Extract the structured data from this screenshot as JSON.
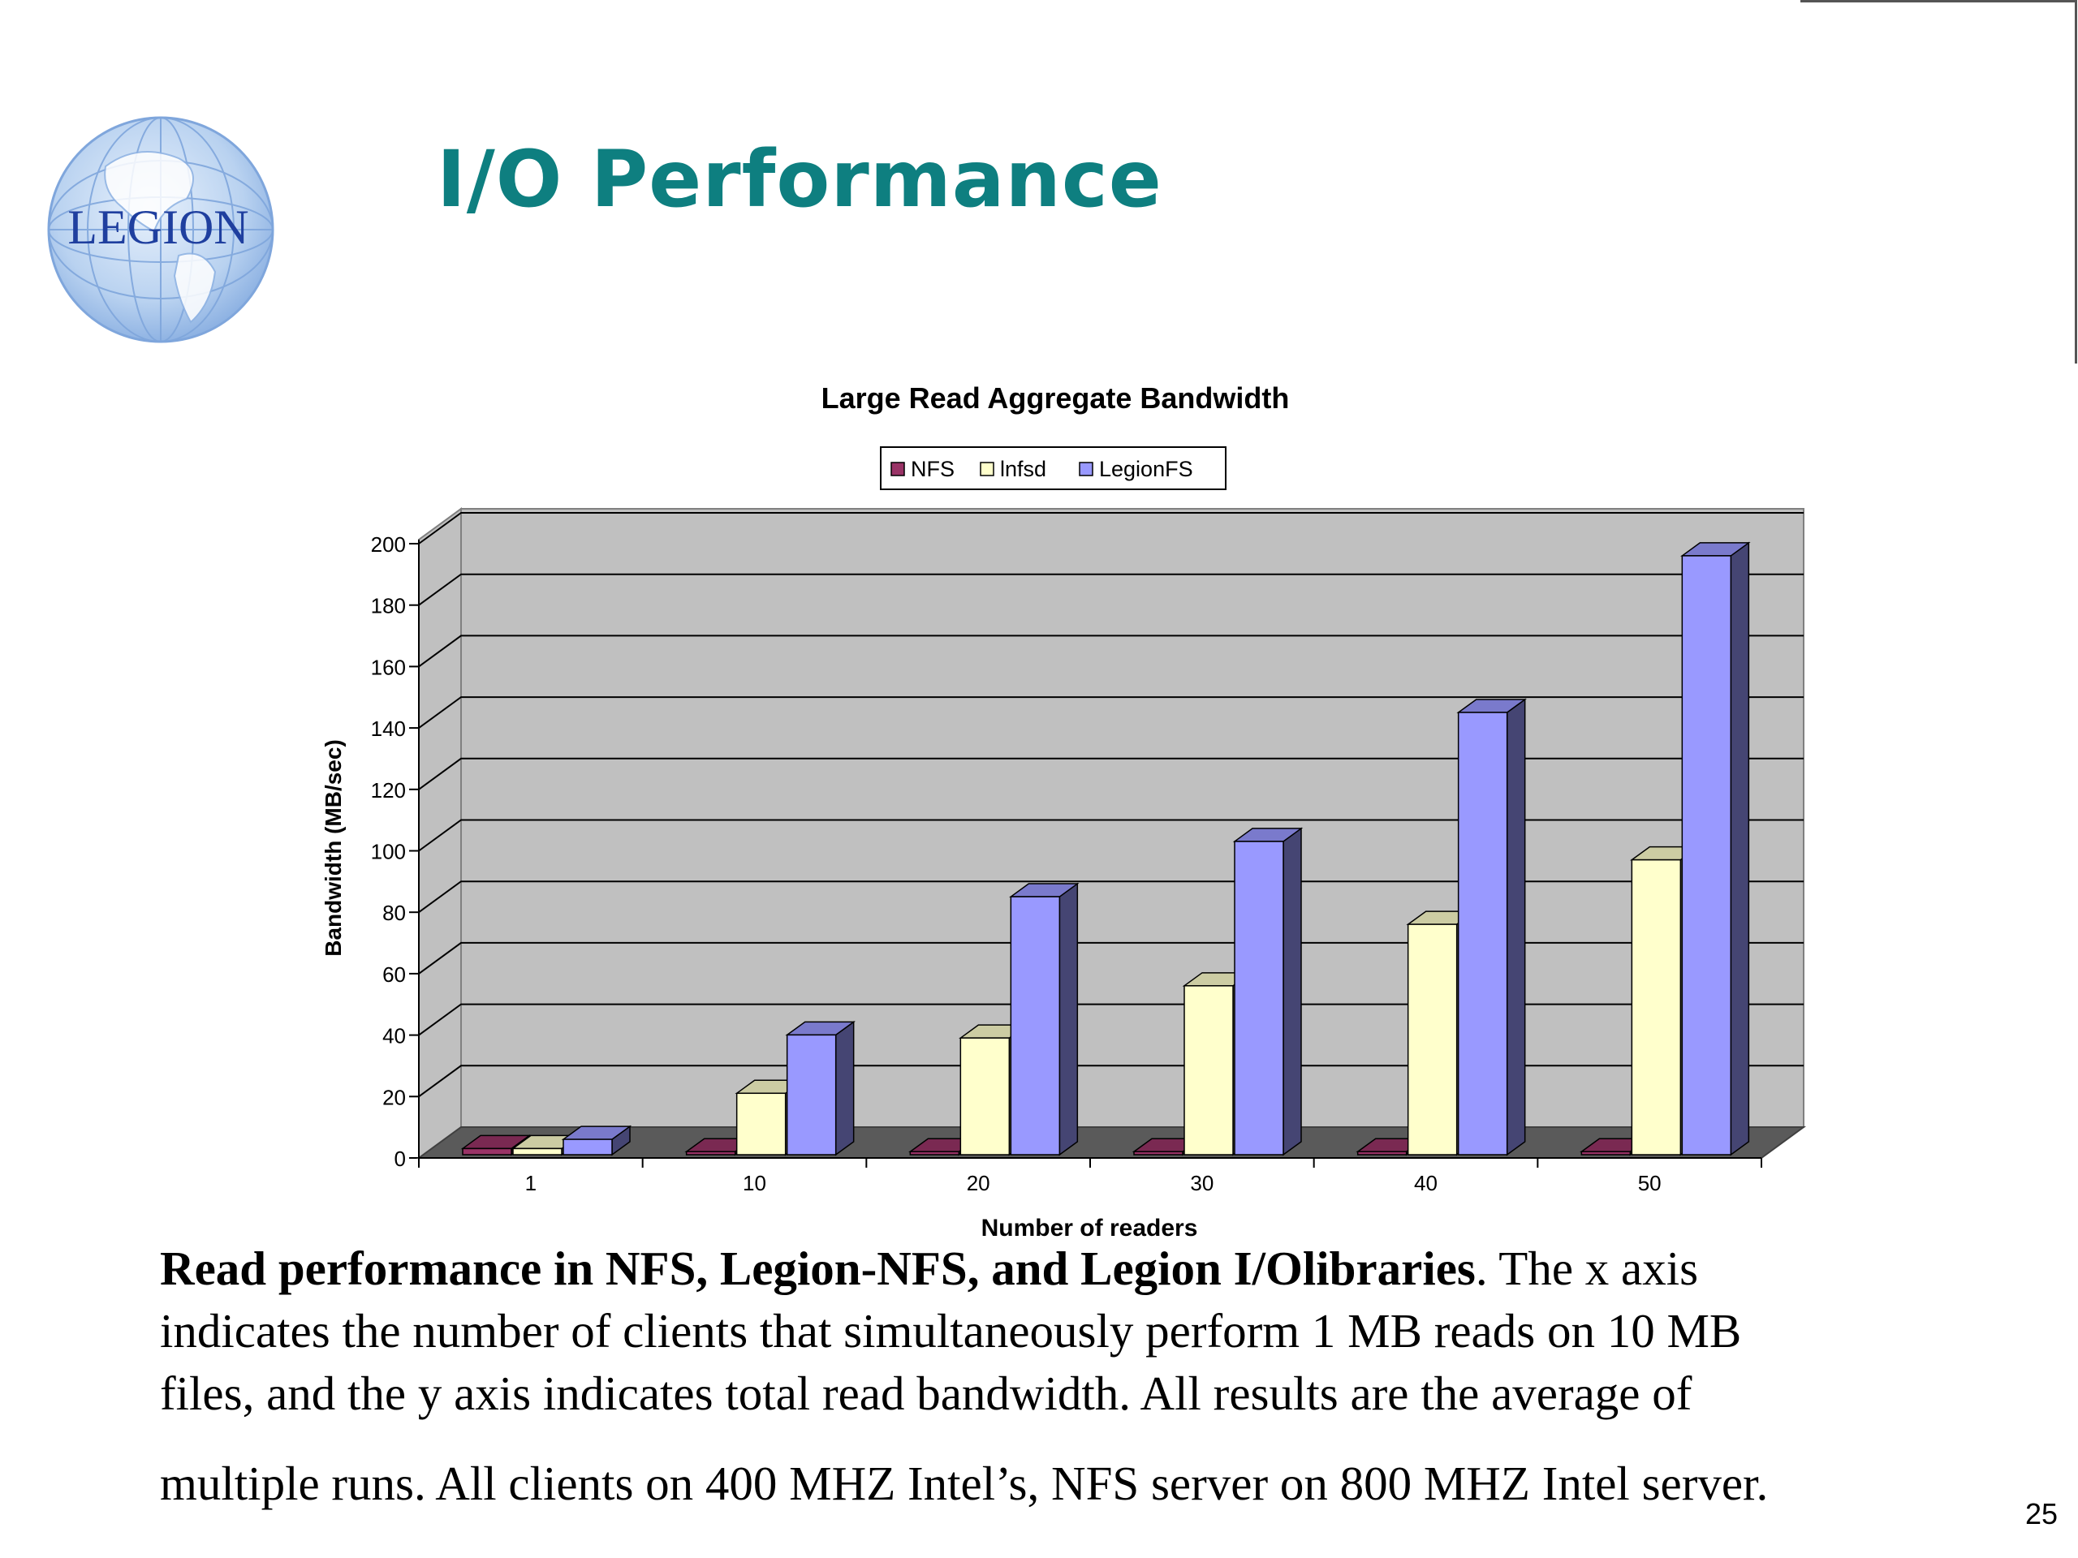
{
  "slide": {
    "logo_text": "LEGION",
    "title": "I/O Performance",
    "caption_lead": "Read performance in NFS, Legion-NFS, and Legion I/Olibraries",
    "caption_line1_rest": ". The x axis",
    "caption_line2": "indicates the number of clients that simultaneously perform 1 MB reads on 10 MB",
    "caption_line3": "files, and the y axis indicates total read bandwidth. All results are the average of",
    "caption_line4": "multiple runs. All clients on 400 MHZ Intel’s, NFS server on 800 MHZ Intel server.",
    "page_number": "25",
    "title_color": "#0e7f80"
  },
  "chart_data": {
    "type": "bar",
    "title": "Large Read Aggregate Bandwidth",
    "xlabel": "Number of readers",
    "ylabel": "Bandwidth (MB/sec)",
    "categories": [
      "1",
      "10",
      "20",
      "30",
      "40",
      "50"
    ],
    "ylim": [
      0,
      200
    ],
    "yticks": [
      "0",
      "20",
      "40",
      "60",
      "80",
      "100",
      "120",
      "140",
      "160",
      "180",
      "200"
    ],
    "grid": true,
    "legend_position": "top-center",
    "series": [
      {
        "name": "NFS",
        "values": [
          2,
          1,
          1,
          1,
          1,
          1
        ],
        "color": "#993366"
      },
      {
        "name": "lnfsd",
        "values": [
          2,
          20,
          38,
          55,
          75,
          96
        ],
        "color": "#ffffcc"
      },
      {
        "name": "LegionFS",
        "values": [
          5,
          39,
          84,
          102,
          144,
          195
        ],
        "color": "#9999ff"
      }
    ]
  }
}
